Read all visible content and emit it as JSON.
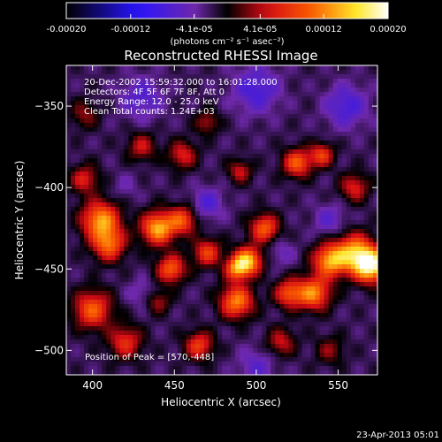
{
  "chart_data": {
    "type": "heatmap",
    "title": "Reconstructed RHESSI Image",
    "xlabel": "Heliocentric X (arcsec)",
    "ylabel": "Heliocentric Y (arcsec)",
    "xlim": [
      384,
      574
    ],
    "ylim": [
      -515,
      -325
    ],
    "x_ticks": [
      400,
      450,
      500,
      550
    ],
    "y_ticks": [
      -350,
      -400,
      -450,
      -500
    ],
    "colorbar": {
      "min": -0.0002,
      "max": 0.0002,
      "tick_values": [
        -0.0002,
        -0.00012,
        -4.1e-05,
        4.1e-05,
        0.00012,
        0.0002
      ],
      "tick_labels": [
        "-0.00020",
        "-0.00012",
        "-4.1e-05",
        "4.1e-05",
        "0.00012",
        "0.00020"
      ],
      "unit_label": "(photons cm⁻² s⁻¹ asec⁻²)"
    },
    "info_lines": [
      "20-Dec-2002 15:59:32.000 to 16:01:28.000",
      "Detectors: 4F 5F 6F 7F 8F, Att 0",
      "Energy Range: 12.0 - 25.0 keV",
      "Clean     Total counts: 1.24E+03"
    ],
    "peak_label": "Position of Peak = [570,-448]",
    "peak": [
      570,
      -448
    ],
    "timestamp": "23-Apr-2013 05:01",
    "blobs": [
      {
        "x": 570,
        "y": -448,
        "v": 0.0002,
        "s": 7
      },
      {
        "x": 560,
        "y": -440,
        "v": 0.00015,
        "s": 8
      },
      {
        "x": 545,
        "y": -445,
        "v": 0.00015,
        "s": 7
      },
      {
        "x": 535,
        "y": -465,
        "v": 0.00014,
        "s": 7
      },
      {
        "x": 520,
        "y": -465,
        "v": 0.00011,
        "s": 6
      },
      {
        "x": 405,
        "y": -420,
        "v": 0.00015,
        "s": 8
      },
      {
        "x": 410,
        "y": -435,
        "v": 0.00012,
        "s": 7
      },
      {
        "x": 440,
        "y": -425,
        "v": 0.00016,
        "s": 7
      },
      {
        "x": 455,
        "y": -420,
        "v": 0.00011,
        "s": 6
      },
      {
        "x": 448,
        "y": -450,
        "v": 0.00012,
        "s": 6
      },
      {
        "x": 495,
        "y": -445,
        "v": 0.00016,
        "s": 6
      },
      {
        "x": 488,
        "y": -470,
        "v": 0.00014,
        "s": 7
      },
      {
        "x": 488,
        "y": -450,
        "v": 0.00012,
        "s": 5
      },
      {
        "x": 505,
        "y": -425,
        "v": 0.00012,
        "s": 6
      },
      {
        "x": 470,
        "y": -440,
        "v": 0.0001,
        "s": 6
      },
      {
        "x": 525,
        "y": -385,
        "v": 0.00012,
        "s": 6
      },
      {
        "x": 540,
        "y": -380,
        "v": 0.0001,
        "s": 5
      },
      {
        "x": 400,
        "y": -475,
        "v": 0.00012,
        "s": 8
      },
      {
        "x": 420,
        "y": -495,
        "v": 9e-05,
        "s": 7
      },
      {
        "x": 395,
        "y": -395,
        "v": 8e-05,
        "s": 6
      },
      {
        "x": 455,
        "y": -380,
        "v": 8e-05,
        "s": 6
      },
      {
        "x": 470,
        "y": -360,
        "v": 6e-05,
        "s": 5
      },
      {
        "x": 490,
        "y": -390,
        "v": 7e-05,
        "s": 5
      },
      {
        "x": 465,
        "y": -497,
        "v": 0.0001,
        "s": 6
      },
      {
        "x": 515,
        "y": -495,
        "v": 7e-05,
        "s": 6
      },
      {
        "x": 560,
        "y": -400,
        "v": 8e-05,
        "s": 6
      },
      {
        "x": 430,
        "y": -375,
        "v": 7e-05,
        "s": 6
      },
      {
        "x": 440,
        "y": -470,
        "v": 6e-05,
        "s": 5
      },
      {
        "x": 545,
        "y": -500,
        "v": 5e-05,
        "s": 6
      },
      {
        "x": 395,
        "y": -355,
        "v": 5e-05,
        "s": 6
      },
      {
        "x": 430,
        "y": -345,
        "v": -5e-05,
        "s": 9
      },
      {
        "x": 500,
        "y": -340,
        "v": -6e-05,
        "s": 10
      },
      {
        "x": 555,
        "y": -350,
        "v": -6e-05,
        "s": 9
      },
      {
        "x": 470,
        "y": -410,
        "v": -5e-05,
        "s": 7
      },
      {
        "x": 545,
        "y": -420,
        "v": -4e-05,
        "s": 7
      },
      {
        "x": 515,
        "y": -440,
        "v": -3e-05,
        "s": 6
      },
      {
        "x": 430,
        "y": -465,
        "v": -3e-05,
        "s": 6
      },
      {
        "x": 500,
        "y": -510,
        "v": -4e-05,
        "s": 8
      },
      {
        "x": 420,
        "y": -400,
        "v": -2e-05,
        "s": 6
      }
    ]
  }
}
